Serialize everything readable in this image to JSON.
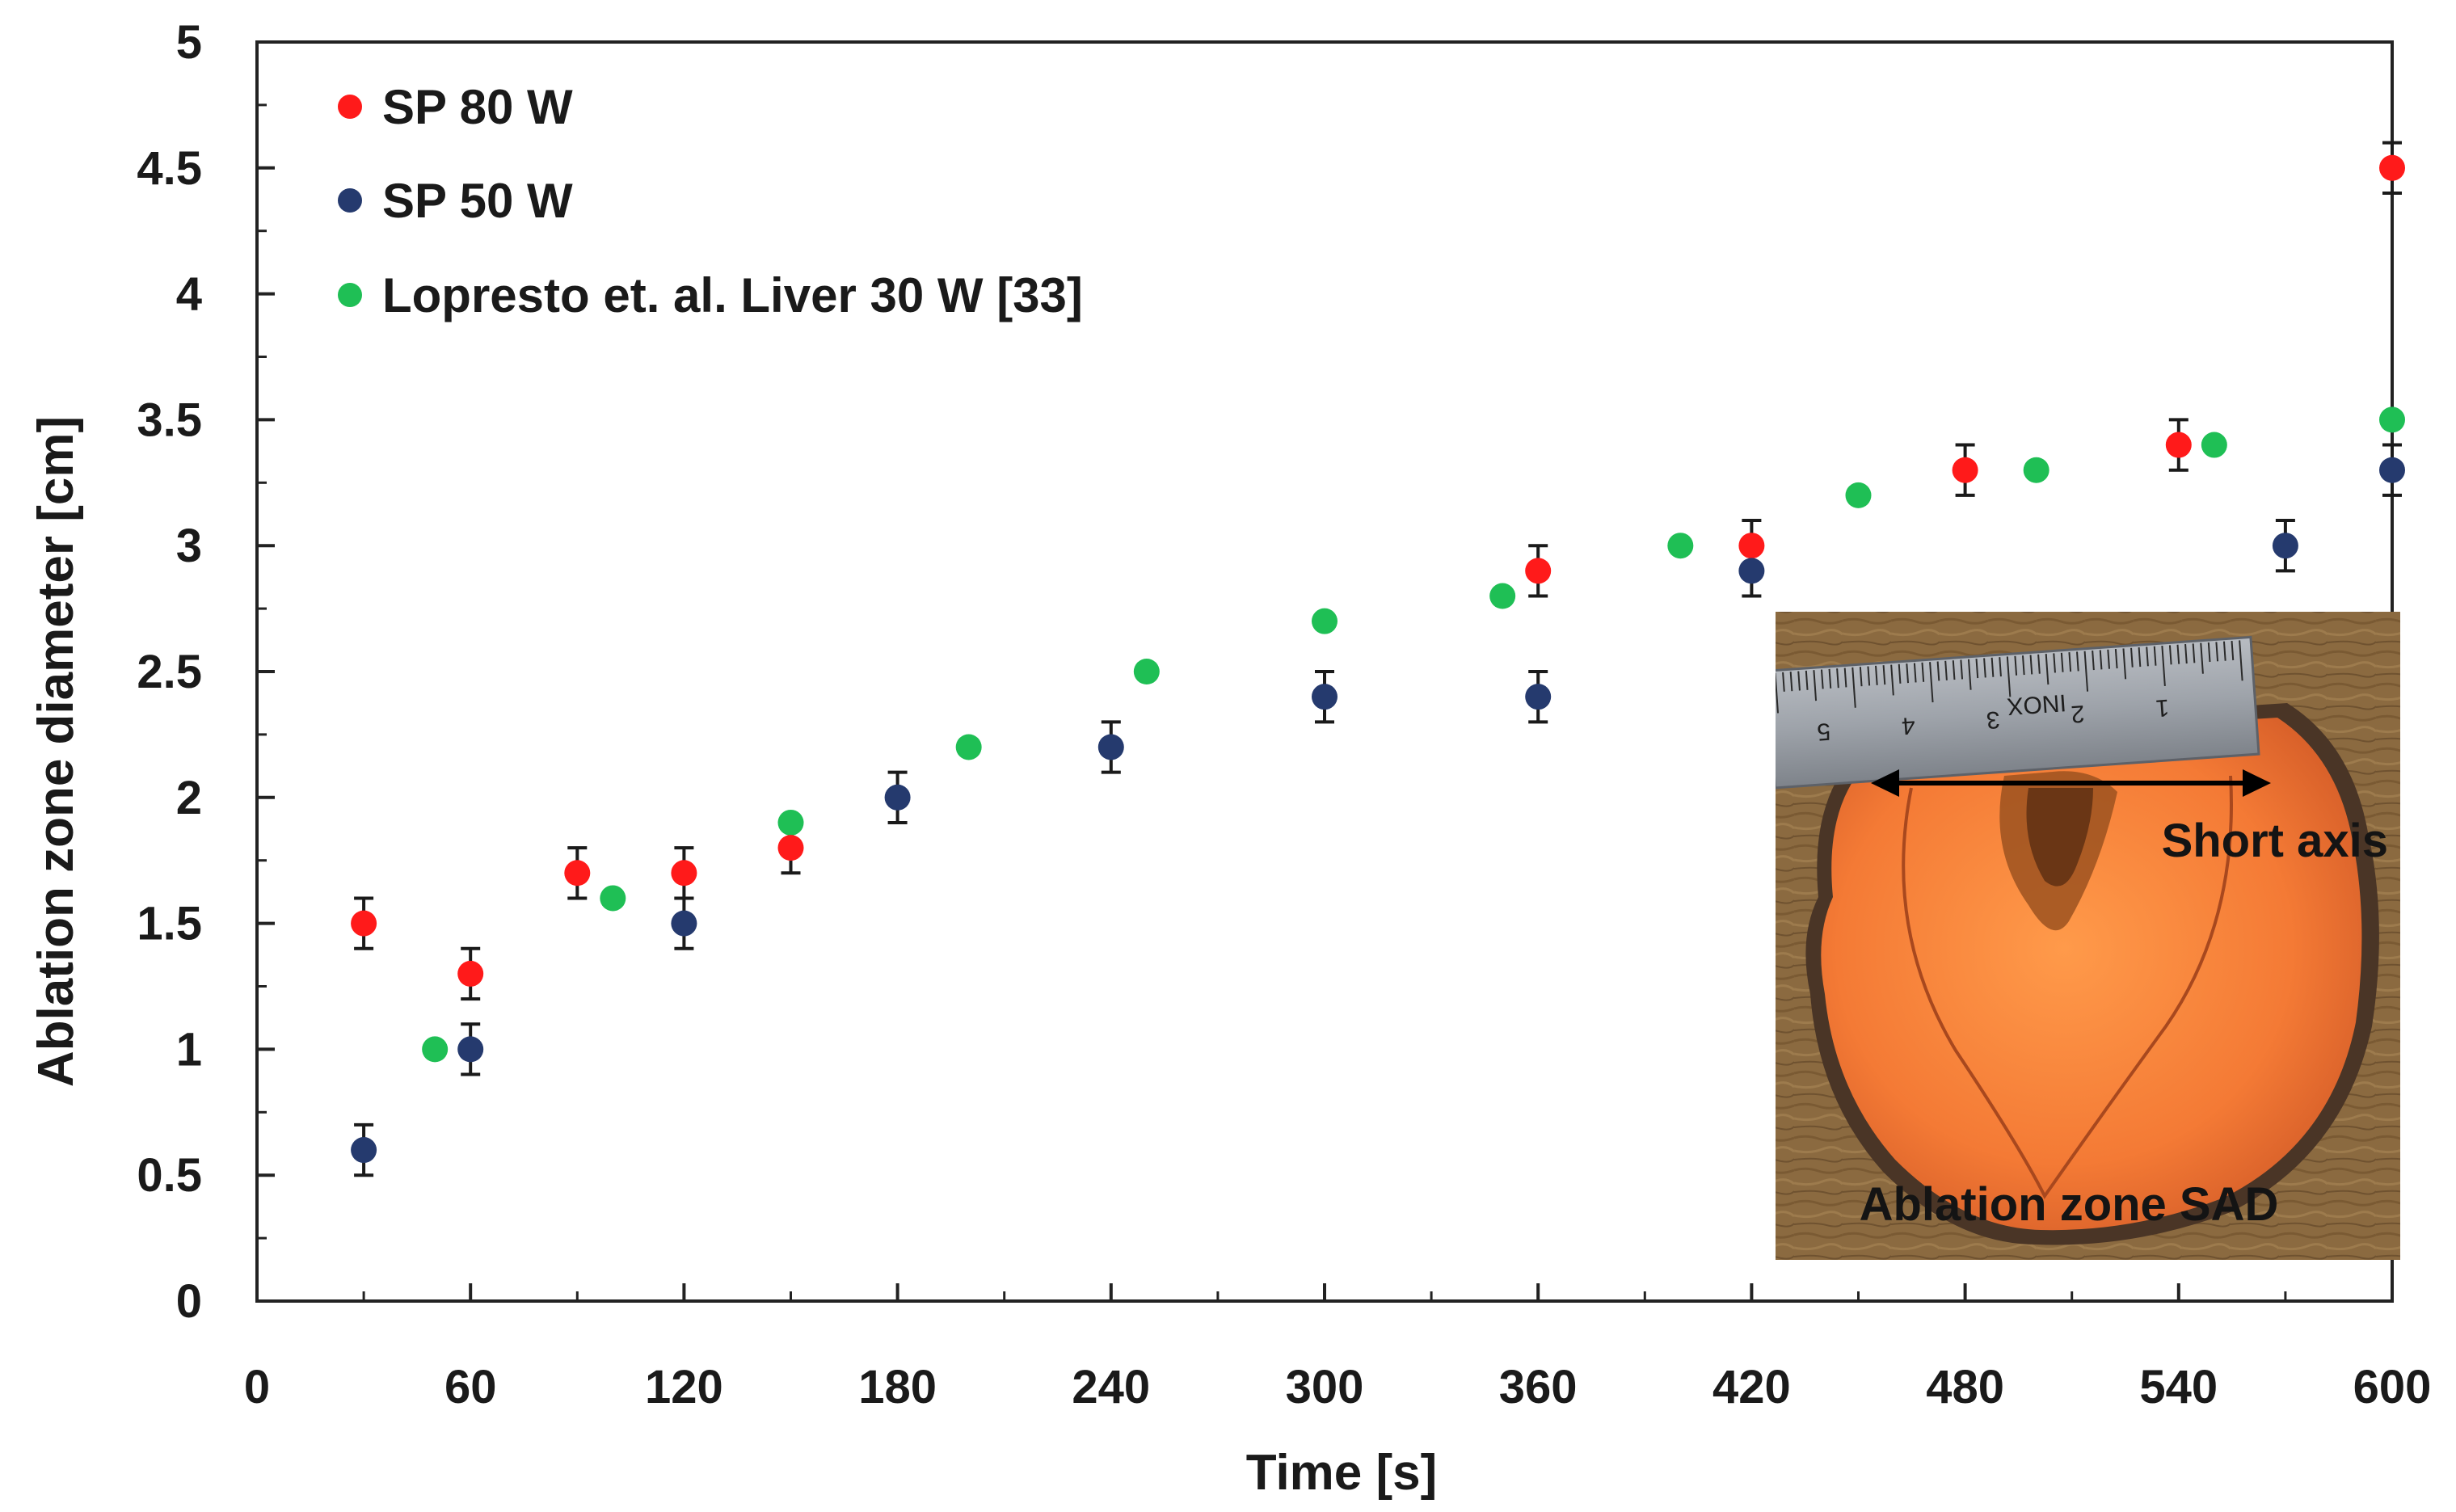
{
  "chart_data": {
    "type": "scatter",
    "title": "",
    "xlabel": "Time [s]",
    "ylabel": "Ablation zone diameter [cm]",
    "xlim": [
      0,
      600
    ],
    "ylim": [
      0,
      5
    ],
    "xticks": [
      "0",
      "60",
      "120",
      "180",
      "240",
      "300",
      "360",
      "420",
      "480",
      "540",
      "600"
    ],
    "yticks": [
      "0",
      "0.5",
      "1",
      "1.5",
      "2",
      "2.5",
      "3",
      "3.5",
      "4",
      "4.5",
      "5"
    ],
    "legend_position": "top-left",
    "series": [
      {
        "name": "SP 80 W",
        "color": "#ff1a1a",
        "error_bar": 0.1,
        "points": [
          [
            30,
            1.5
          ],
          [
            60,
            1.3
          ],
          [
            90,
            1.7
          ],
          [
            120,
            1.7
          ],
          [
            150,
            1.8
          ],
          [
            360,
            2.9
          ],
          [
            420,
            3.0
          ],
          [
            480,
            3.3
          ],
          [
            540,
            3.4
          ],
          [
            600,
            4.5
          ]
        ]
      },
      {
        "name": "SP 50 W",
        "color": "#253a6e",
        "error_bar": 0.1,
        "points": [
          [
            30,
            0.6
          ],
          [
            60,
            1.0
          ],
          [
            120,
            1.5
          ],
          [
            180,
            2.0
          ],
          [
            240,
            2.2
          ],
          [
            300,
            2.4
          ],
          [
            360,
            2.4
          ],
          [
            420,
            2.9
          ],
          [
            570,
            3.0
          ],
          [
            600,
            3.3
          ]
        ]
      },
      {
        "name": "Lopresto et. al. Liver 30 W [33]",
        "color": "#1fbf55",
        "error_bar": 0,
        "points": [
          [
            50,
            1.0
          ],
          [
            100,
            1.6
          ],
          [
            150,
            1.9
          ],
          [
            200,
            2.2
          ],
          [
            250,
            2.5
          ],
          [
            300,
            2.7
          ],
          [
            350,
            2.8
          ],
          [
            400,
            3.0
          ],
          [
            450,
            3.2
          ],
          [
            500,
            3.3
          ],
          [
            550,
            3.4
          ],
          [
            600,
            3.5
          ]
        ]
      }
    ]
  },
  "inset": {
    "short_axis_label": "Short axis",
    "caption": "Ablation zone SAD",
    "ruler_marks": [
      "5",
      "4",
      "3",
      "2",
      "1"
    ],
    "ruler_brand": "INOX"
  }
}
